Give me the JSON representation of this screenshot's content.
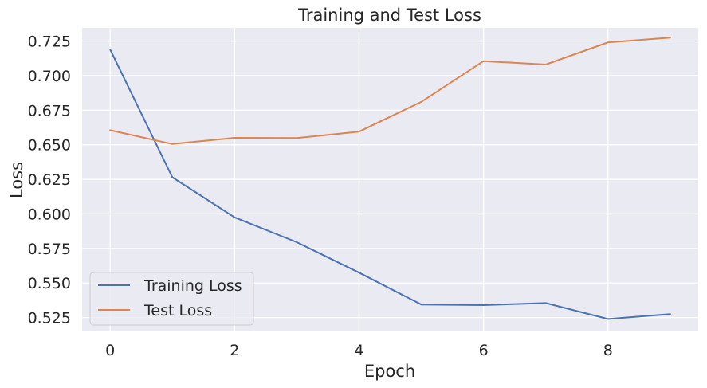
{
  "chart_data": {
    "type": "line",
    "title": "Training and Test Loss",
    "xlabel": "Epoch",
    "ylabel": "Loss",
    "xlim": [
      -0.45,
      9.45
    ],
    "ylim": [
      0.515,
      0.7345
    ],
    "xticks": [
      0,
      2,
      4,
      6,
      8
    ],
    "xtick_labels": [
      "0",
      "2",
      "4",
      "6",
      "8"
    ],
    "yticks": [
      0.525,
      0.55,
      0.575,
      0.6,
      0.625,
      0.65,
      0.675,
      0.7,
      0.725
    ],
    "ytick_labels": [
      "0.525",
      "0.550",
      "0.575",
      "0.600",
      "0.625",
      "0.650",
      "0.675",
      "0.700",
      "0.725"
    ],
    "grid": true,
    "legend_position": "lower-left",
    "x": [
      0,
      1,
      2,
      3,
      4,
      5,
      6,
      7,
      8,
      9
    ],
    "series": [
      {
        "name": "Training Loss",
        "color": "#4c72b0",
        "values": [
          0.719,
          0.6265,
          0.5975,
          0.5795,
          0.5575,
          0.5345,
          0.534,
          0.5355,
          0.524,
          0.5275
        ]
      },
      {
        "name": "Test Loss",
        "color": "#dd8452",
        "values": [
          0.6605,
          0.6505,
          0.655,
          0.6548,
          0.6595,
          0.681,
          0.7105,
          0.708,
          0.724,
          0.7275
        ]
      }
    ],
    "colors": {
      "plot_background": "#eaeaf2",
      "grid": "#ffffff",
      "text": "#262626"
    }
  }
}
